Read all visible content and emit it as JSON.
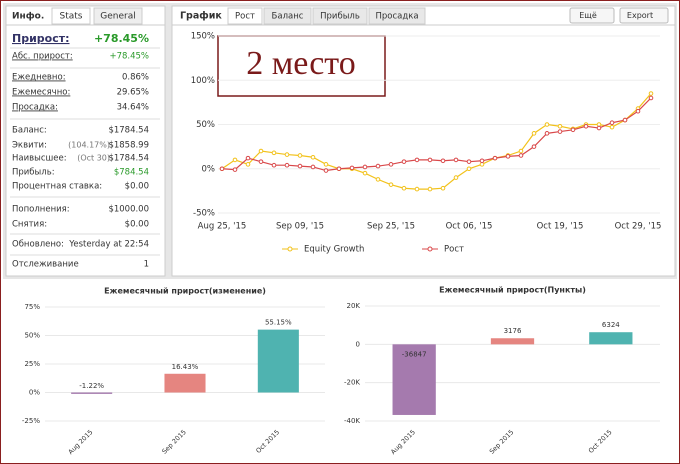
{
  "info_panel": {
    "tabs": [
      "Инфо.",
      "Stats",
      "General"
    ],
    "rows": [
      {
        "label": "Прирост:",
        "value": "+78.45%"
      },
      {
        "label": "Абс. прирост:",
        "value": "+78.45%"
      },
      {
        "label": "Ежедневно:",
        "value": "0.86%"
      },
      {
        "label": "Ежемесячно:",
        "value": "29.65%"
      },
      {
        "label": "Просадка:",
        "value": "34.64%"
      },
      {
        "label": "Баланс:",
        "value": "$1784.54"
      },
      {
        "label": "Эквити:",
        "note": "(104.17%)",
        "value": "$1858.99"
      },
      {
        "label": "Наивысшее:",
        "note": "(Oct 30)",
        "value": "$1784.54"
      },
      {
        "label": "Прибыль:",
        "value": "$784.54"
      },
      {
        "label": "Процентная ставка:",
        "value": "$0.00"
      },
      {
        "label": "Пополнения:",
        "value": "$1000.00"
      },
      {
        "label": "Снятия:",
        "value": "$0.00"
      },
      {
        "label": "Обновлено:",
        "value": "Yesterday at 22:54"
      },
      {
        "label": "Отслеживание",
        "value": "1"
      }
    ]
  },
  "main_panel": {
    "title": "График",
    "tabs": [
      "Рост",
      "Баланс",
      "Прибыль",
      "Просадка"
    ],
    "buttons": [
      "Ещё",
      "Export"
    ],
    "overlay_label": "2 место"
  },
  "chart_data": [
    {
      "type": "line",
      "categories": [
        "Aug 25, '15",
        null,
        null,
        null,
        null,
        null,
        "Sep 09, '15",
        null,
        null,
        null,
        null,
        null,
        null,
        "Sep 25, '15",
        null,
        null,
        null,
        null,
        null,
        "Oct 06, '15",
        null,
        null,
        null,
        null,
        null,
        null,
        "Oct 19, '15",
        null,
        null,
        null,
        null,
        null,
        "Oct 29, '15",
        null
      ],
      "series": [
        {
          "name": "Equity Growth",
          "color": "#f2c21b",
          "values": [
            0,
            10,
            5,
            20,
            18,
            16,
            15,
            13,
            5,
            0,
            0,
            -5,
            -12,
            -18,
            -22,
            -23,
            -23,
            -22,
            -10,
            0,
            5,
            12,
            15,
            20,
            40,
            50,
            48,
            45,
            50,
            50,
            47,
            55,
            68,
            85
          ]
        },
        {
          "name": "Рост",
          "color": "#d9484a",
          "values": [
            0,
            -1,
            12,
            8,
            4,
            4,
            3,
            2,
            -2,
            0,
            1,
            2,
            3,
            5,
            8,
            10,
            10,
            9,
            10,
            8,
            9,
            12,
            14,
            15,
            25,
            40,
            42,
            44,
            48,
            46,
            52,
            55,
            65,
            80
          ]
        }
      ],
      "ylim": [
        -50,
        150
      ],
      "yticks": [
        {
          "value": 150,
          "label": "150%"
        },
        {
          "value": 100,
          "label": "100%"
        },
        {
          "value": 50,
          "label": "50%"
        },
        {
          "value": 0,
          "label": "0%"
        },
        {
          "value": -50,
          "label": "-50%"
        }
      ],
      "grid": true
    },
    {
      "type": "bar",
      "title": "Ежемесячный прирост(изменение)",
      "categories": [
        "Aug 2015",
        "Sep 2015",
        "Oct 2015"
      ],
      "values": [
        -1.22,
        16.43,
        55.15
      ],
      "value_labels": [
        "-1.22%",
        "16.43%",
        "55.15%"
      ],
      "colors": [
        "#a57aae",
        "#e58580",
        "#4fb3b0"
      ],
      "ylim": [
        -25,
        75
      ],
      "yticks": [
        {
          "value": 75,
          "label": "75%"
        },
        {
          "value": 50,
          "label": "50%"
        },
        {
          "value": 25,
          "label": "25%"
        },
        {
          "value": 0,
          "label": "0%"
        },
        {
          "value": -25,
          "label": "-25%"
        }
      ],
      "grid": true
    },
    {
      "type": "bar",
      "title": "Ежемесячный прирост(Пункты)",
      "categories": [
        "Aug 2015",
        "Sep 2015",
        "Oct 2015"
      ],
      "values": [
        -36847,
        3176,
        6324
      ],
      "colors": [
        "#a57aae",
        "#e58580",
        "#4fb3b0"
      ],
      "ylim": [
        -40000,
        20000
      ],
      "yticks": [
        {
          "value": 20000,
          "label": "20K"
        },
        {
          "value": 0,
          "label": "0"
        },
        {
          "value": -20000,
          "label": "-20K"
        },
        {
          "value": -40000,
          "label": "-40K"
        }
      ],
      "grid": true
    }
  ]
}
